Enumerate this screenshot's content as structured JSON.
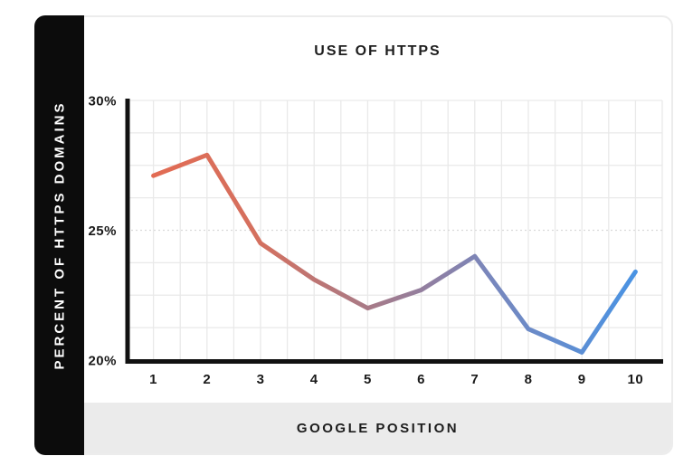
{
  "header": {
    "title": "USE OF HTTPS"
  },
  "axes": {
    "y_title": "PERCENT OF HTTPS DOMAINS",
    "x_title": "GOOGLE POSITION"
  },
  "chart_data": {
    "type": "line",
    "title": "USE OF HTTPS",
    "xlabel": "GOOGLE POSITION",
    "ylabel": "PERCENT OF HTTPS DOMAINS",
    "x": [
      "1",
      "2",
      "3",
      "4",
      "5",
      "6",
      "7",
      "8",
      "9",
      "10"
    ],
    "values": [
      27.1,
      27.9,
      24.5,
      23.1,
      22.0,
      22.7,
      24.0,
      21.2,
      20.3,
      23.4
    ],
    "ylim": [
      20,
      30
    ],
    "yticks": [
      {
        "value": 30,
        "label": "30%"
      },
      {
        "value": 25,
        "label": "25%"
      },
      {
        "value": 20,
        "label": "20%"
      }
    ],
    "grid": {
      "on": true,
      "x_divisions": 20,
      "y_divisions": 8,
      "dotted_at_value": 25
    },
    "legend": "none",
    "line_width": 5,
    "gradient_stops": [
      {
        "offset": 0,
        "color": "#e26b53"
      },
      {
        "offset": 0.22,
        "color": "#d4705f"
      },
      {
        "offset": 0.44,
        "color": "#a97a86"
      },
      {
        "offset": 0.6,
        "color": "#8b80a7"
      },
      {
        "offset": 0.7,
        "color": "#7887bd"
      },
      {
        "offset": 1,
        "color": "#4a93e3"
      }
    ]
  },
  "colors": {
    "page_bg": "#ffffff",
    "card_border": "#ececec",
    "sidebar_bg": "#0c0c0c",
    "sidebar_text": "#ffffff",
    "footer_bg": "#ebebeb",
    "title_text": "#1d1d1d",
    "tick_text": "#1a1a1a",
    "axis": "#111111",
    "grid": "#e9e9e9",
    "grid_dotted": "#d9d9d9"
  }
}
